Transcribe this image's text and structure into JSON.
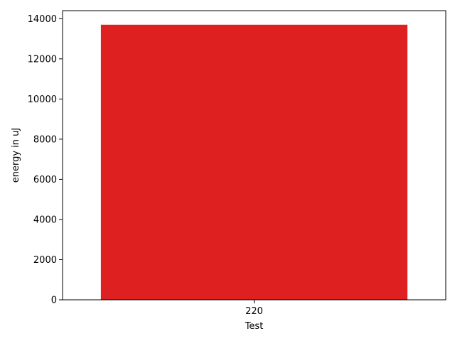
{
  "chart_data": {
    "type": "bar",
    "title": "",
    "xlabel": "Test",
    "ylabel": "energy in uJ",
    "categories": [
      "220"
    ],
    "values": [
      13700
    ],
    "ylim": [
      0,
      14400
    ],
    "yticks": [
      0,
      2000,
      4000,
      6000,
      8000,
      10000,
      12000,
      14000
    ],
    "grid": false,
    "legend": "none",
    "colors": {
      "bar": "#df2020"
    }
  }
}
